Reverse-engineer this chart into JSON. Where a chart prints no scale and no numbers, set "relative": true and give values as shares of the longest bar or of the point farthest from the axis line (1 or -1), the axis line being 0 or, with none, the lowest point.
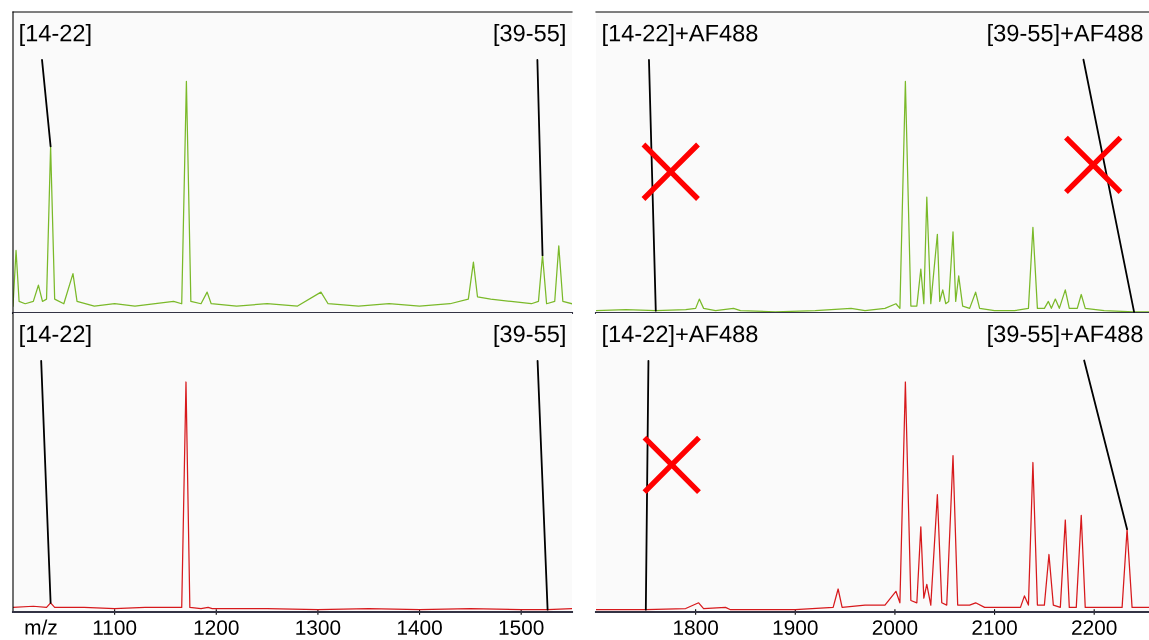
{
  "chart_data": [
    {
      "type": "line",
      "relative": true,
      "xlim": [
        1000,
        1550
      ],
      "tick_labels": false,
      "series": [
        {
          "color": "#7ab929",
          "x": [
            1000,
            1003,
            1006,
            1012,
            1020,
            1025,
            1029,
            1033,
            1037,
            1041,
            1050,
            1059,
            1063,
            1080,
            1100,
            1120,
            1140,
            1158,
            1166,
            1170.6,
            1175,
            1185,
            1191,
            1195,
            1220,
            1250,
            1280,
            1303,
            1310,
            1340,
            1370,
            1400,
            1430,
            1448,
            1453,
            1457,
            1470,
            1490,
            1510,
            1517,
            1521,
            1525,
            1533,
            1537,
            1541,
            1550
          ],
          "values": [
            0.03,
            0.27,
            0.05,
            0.04,
            0.05,
            0.12,
            0.05,
            0.06,
            0.72,
            0.06,
            0.04,
            0.17,
            0.05,
            0.03,
            0.04,
            0.03,
            0.04,
            0.05,
            0.04,
            1.0,
            0.05,
            0.04,
            0.09,
            0.04,
            0.03,
            0.04,
            0.03,
            0.09,
            0.04,
            0.03,
            0.04,
            0.03,
            0.04,
            0.06,
            0.22,
            0.07,
            0.06,
            0.05,
            0.04,
            0.05,
            0.25,
            0.04,
            0.05,
            0.29,
            0.05,
            0.04
          ]
        }
      ],
      "annotations": [
        {
          "text": "[14-22]",
          "x": 1037,
          "y": 0.72
        },
        {
          "text": "[39-55]",
          "x": 1521,
          "y": 0.25
        }
      ]
    },
    {
      "type": "line",
      "relative": true,
      "xlim": [
        1700,
        2255
      ],
      "tick_labels": false,
      "series": [
        {
          "color": "#7ab929",
          "x": [
            1700,
            1730,
            1760,
            1790,
            1800,
            1803.7,
            1808,
            1820,
            1838,
            1845,
            1880,
            1920,
            1956,
            1970,
            1990,
            2001,
            2005,
            2010.5,
            2016,
            2022,
            2026,
            2029,
            2032,
            2036,
            2042.6,
            2045,
            2048,
            2051,
            2054,
            2058.3,
            2061,
            2064,
            2068,
            2075,
            2081,
            2085,
            2100,
            2120,
            2134,
            2138.5,
            2143,
            2150,
            2154,
            2157,
            2161,
            2165,
            2171,
            2175,
            2183,
            2187,
            2191,
            2210,
            2240,
            2255
          ],
          "values": [
            0.01,
            0.015,
            0.01,
            0.015,
            0.02,
            0.06,
            0.02,
            0.01,
            0.02,
            0.01,
            0.005,
            0.01,
            0.02,
            0.01,
            0.02,
            0.04,
            0.02,
            1.0,
            0.03,
            0.03,
            0.19,
            0.04,
            0.5,
            0.04,
            0.34,
            0.05,
            0.1,
            0.04,
            0.05,
            0.35,
            0.05,
            0.16,
            0.03,
            0.02,
            0.09,
            0.02,
            0.01,
            0.01,
            0.02,
            0.37,
            0.02,
            0.02,
            0.05,
            0.02,
            0.06,
            0.02,
            0.1,
            0.02,
            0.02,
            0.08,
            0.02,
            0.01,
            0.005,
            0.005
          ]
        },
        {
          "type": "scatter",
          "marker": "cross",
          "color": "#ff0000",
          "x": [
            1775,
            2199
          ],
          "values": [
            0.61,
            0.64
          ]
        }
      ],
      "annotations": [
        {
          "text": "[14-22]+AF488",
          "x": 1760,
          "y": 0.01
        },
        {
          "text": "[39-55]+AF488",
          "x": 2240,
          "y": 0.005
        }
      ]
    },
    {
      "type": "line",
      "relative": true,
      "xlim": [
        1000,
        1550
      ],
      "xticks": [
        1100,
        1200,
        1300,
        1400,
        1500
      ],
      "tick_labels": "x",
      "xlabel": "m/z",
      "series": [
        {
          "color": "#d7191c",
          "x": [
            1000,
            1020,
            1033,
            1037,
            1041,
            1070,
            1100,
            1130,
            1160,
            1166,
            1170.2,
            1174,
            1185,
            1192,
            1196,
            1250,
            1300,
            1350,
            1400,
            1450,
            1500,
            1526,
            1550
          ],
          "values": [
            0.02,
            0.025,
            0.02,
            0.04,
            0.02,
            0.02,
            0.015,
            0.02,
            0.02,
            0.02,
            1.0,
            0.02,
            0.015,
            0.02,
            0.015,
            0.015,
            0.01,
            0.015,
            0.01,
            0.015,
            0.01,
            0.01,
            0.015
          ]
        }
      ],
      "annotations": [
        {
          "text": "[14-22]",
          "x": 1037,
          "y": 0.04
        },
        {
          "text": "[39-55]",
          "x": 1526,
          "y": 0.01
        }
      ]
    },
    {
      "type": "line",
      "relative": true,
      "xlim": [
        1700,
        2255
      ],
      "xticks": [
        1800,
        1900,
        2000,
        2100,
        2200
      ],
      "tick_labels": "x",
      "series": [
        {
          "color": "#d7191c",
          "x": [
            1700,
            1750,
            1790,
            1803,
            1808,
            1830,
            1835,
            1900,
            1938,
            1943,
            1947,
            1970,
            1990,
            2001,
            2005,
            2010.5,
            2016,
            2022,
            2026,
            2029,
            2032,
            2036,
            2042.6,
            2047,
            2052,
            2058.3,
            2063,
            2075,
            2081,
            2090,
            2110,
            2126,
            2130,
            2134,
            2138.5,
            2143,
            2150,
            2154.6,
            2159,
            2166,
            2171,
            2175,
            2182,
            2187,
            2191,
            2210,
            2228,
            2233,
            2238,
            2255
          ],
          "values": [
            0.01,
            0.01,
            0.015,
            0.04,
            0.015,
            0.02,
            0.01,
            0.01,
            0.02,
            0.1,
            0.02,
            0.03,
            0.03,
            0.09,
            0.04,
            1.0,
            0.05,
            0.04,
            0.37,
            0.06,
            0.12,
            0.03,
            0.51,
            0.04,
            0.03,
            0.68,
            0.03,
            0.03,
            0.04,
            0.02,
            0.02,
            0.02,
            0.07,
            0.03,
            0.65,
            0.03,
            0.03,
            0.25,
            0.03,
            0.02,
            0.4,
            0.02,
            0.02,
            0.42,
            0.02,
            0.02,
            0.02,
            0.36,
            0.02,
            0.02
          ]
        },
        {
          "type": "scatter",
          "marker": "cross",
          "color": "#ff0000",
          "x": [
            1776
          ],
          "values": [
            0.64
          ]
        }
      ],
      "annotations": [
        {
          "text": "[14-22]+AF488",
          "x": 1750,
          "y": 0.01
        },
        {
          "text": "[39-55]+AF488",
          "x": 2233,
          "y": 0.36
        }
      ]
    }
  ]
}
